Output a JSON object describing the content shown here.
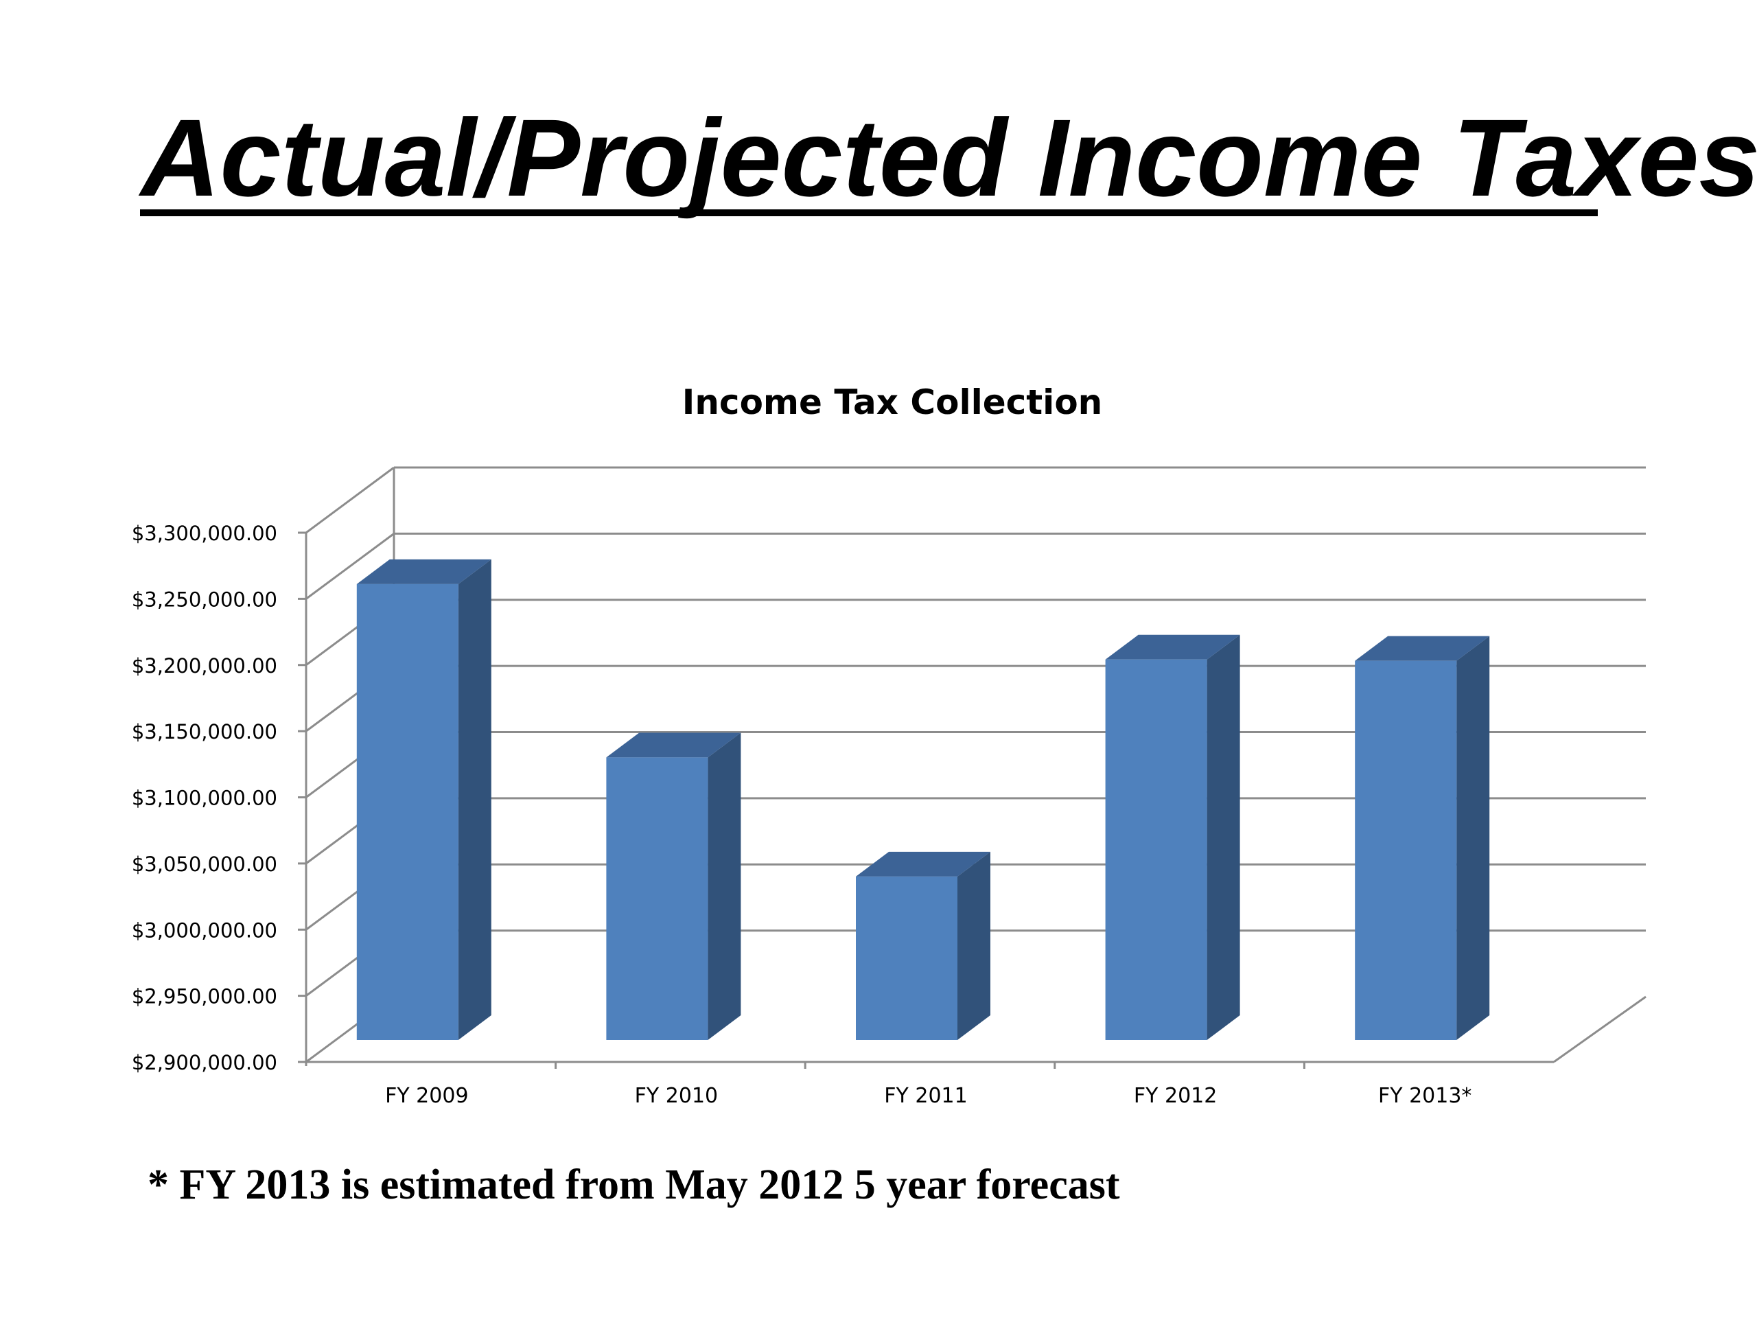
{
  "slide": {
    "title": "Actual/Projected Income Taxes",
    "footnote": "* FY 2013 is estimated from May 2012 5 year forecast"
  },
  "chart_data": {
    "type": "bar",
    "title": "Income Tax Collection",
    "categories": [
      "FY 2009",
      "FY 2010",
      "FY 2011",
      "FY 2012",
      "FY 2013*"
    ],
    "values": [
      3257000,
      3126000,
      3036000,
      3200000,
      3199000
    ],
    "ylim": [
      2900000,
      3300000
    ],
    "ytick_step": 50000,
    "ytick_labels": [
      "$2,900,000.00",
      "$2,950,000.00",
      "$3,000,000.00",
      "$3,050,000.00",
      "$3,100,000.00",
      "$3,150,000.00",
      "$3,200,000.00",
      "$3,250,000.00",
      "$3,300,000.00"
    ],
    "xlabel": "",
    "ylabel": "",
    "grid": true,
    "legend": "none",
    "style": "3d-column",
    "colors": {
      "bar_front": "#4F81BD",
      "bar_top": "#3C6396",
      "bar_side": "#31527A",
      "gridline": "#8C8C8C",
      "axis": "#555555"
    }
  }
}
